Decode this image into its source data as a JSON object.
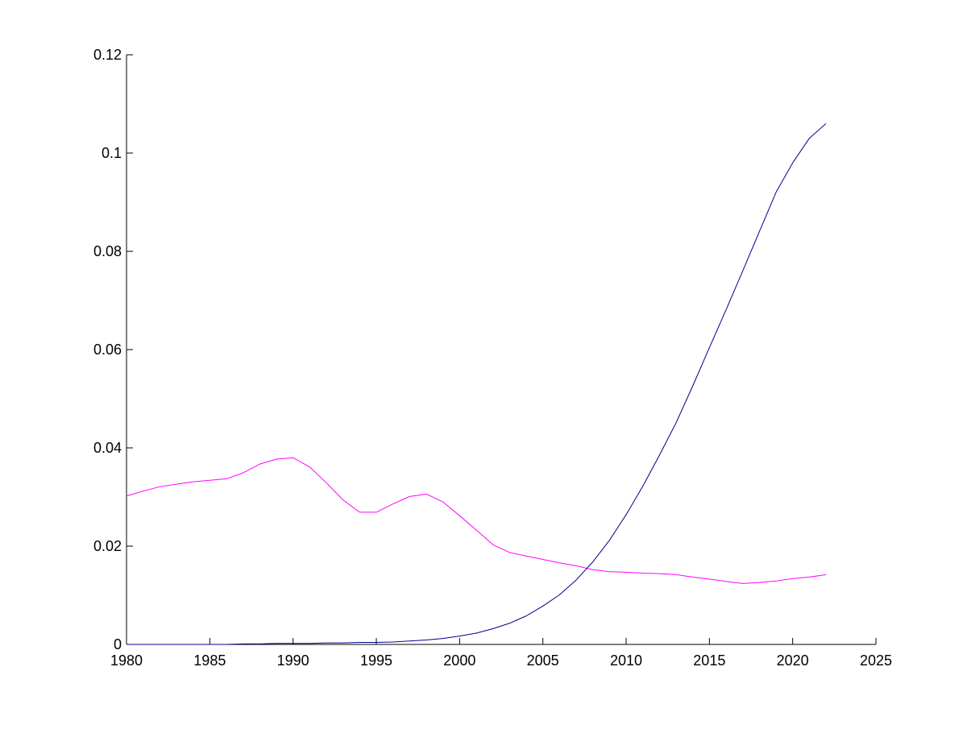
{
  "chart_data": {
    "type": "line",
    "title": "",
    "xlabel": "",
    "ylabel": "",
    "xlim": [
      1980,
      2025
    ],
    "ylim": [
      0,
      0.12
    ],
    "x_ticks": [
      "1980",
      "1985",
      "1990",
      "1995",
      "2000",
      "2005",
      "2010",
      "2015",
      "2020",
      "2025"
    ],
    "y_ticks": [
      "0",
      "0.02",
      "0.04",
      "0.06",
      "0.08",
      "0.1",
      "0.12"
    ],
    "grid": false,
    "legend": "none",
    "series": [
      {
        "color": "#ff00ff",
        "x": [
          1980,
          1981,
          1982,
          1983,
          1984,
          1985,
          1986,
          1987,
          1988,
          1989,
          1990,
          1991,
          1992,
          1993,
          1994,
          1995,
          1996,
          1997,
          1998,
          1999,
          2000,
          2001,
          2002,
          2003,
          2004,
          2005,
          2006,
          2007,
          2008,
          2009,
          2010,
          2011,
          2012,
          2013,
          2014,
          2015,
          2016,
          2017,
          2018,
          2019,
          2020,
          2021,
          2022
        ],
        "y": [
          0.0302,
          0.0312,
          0.0321,
          0.0326,
          0.0331,
          0.0334,
          0.0337,
          0.0349,
          0.0367,
          0.0377,
          0.038,
          0.0361,
          0.0329,
          0.0294,
          0.0269,
          0.0269,
          0.0286,
          0.0301,
          0.0306,
          0.029,
          0.0262,
          0.0233,
          0.0203,
          0.0187,
          0.018,
          0.0173,
          0.0166,
          0.016,
          0.0152,
          0.0148,
          0.0147,
          0.0145,
          0.0144,
          0.0142,
          0.0137,
          0.0133,
          0.0128,
          0.0124,
          0.0126,
          0.0129,
          0.0134,
          0.0137,
          0.0142
        ]
      },
      {
        "color": "#00008b",
        "x": [
          1980,
          1981,
          1982,
          1983,
          1984,
          1985,
          1986,
          1987,
          1988,
          1989,
          1990,
          1991,
          1992,
          1993,
          1994,
          1995,
          1996,
          1997,
          1998,
          1999,
          2000,
          2001,
          2002,
          2003,
          2004,
          2005,
          2006,
          2007,
          2008,
          2009,
          2010,
          2011,
          2012,
          2013,
          2014,
          2015,
          2016,
          2017,
          2018,
          2019,
          2020,
          2021,
          2022
        ],
        "y": [
          0.0,
          0.0,
          0.0,
          0.0,
          0.0,
          0.0,
          0.0,
          0.0001,
          0.0001,
          0.0002,
          0.0002,
          0.0002,
          0.0003,
          0.0003,
          0.0004,
          0.0004,
          0.0005,
          0.0007,
          0.0009,
          0.0012,
          0.0017,
          0.0023,
          0.0032,
          0.0043,
          0.0058,
          0.0078,
          0.0101,
          0.0131,
          0.0168,
          0.0212,
          0.0264,
          0.0322,
          0.0385,
          0.0451,
          0.0526,
          0.0604,
          0.0681,
          0.076,
          0.084,
          0.092,
          0.098,
          0.103,
          0.106
        ]
      }
    ]
  }
}
